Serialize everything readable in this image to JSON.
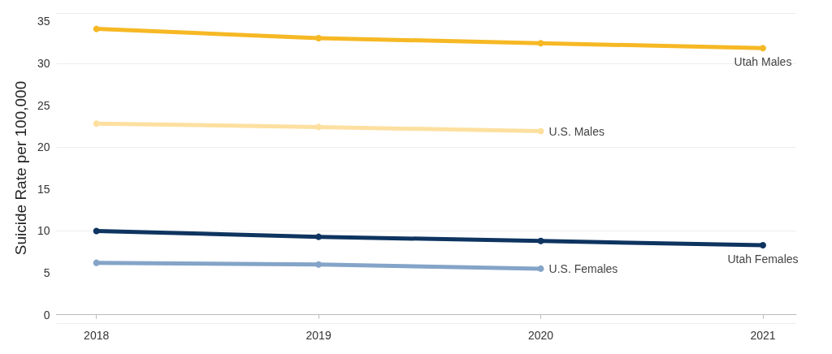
{
  "chart_data": {
    "type": "line",
    "ylabel": "Suicide Rate per 100,000",
    "x": [
      2018,
      2019,
      2020,
      2021
    ],
    "xlim": [
      2017.82,
      2021.15
    ],
    "xticks": [
      2018,
      2019,
      2020,
      2021
    ],
    "ylim": [
      -1,
      36
    ],
    "yticks": [
      0,
      5,
      10,
      15,
      20,
      25,
      30,
      35
    ],
    "grid": "y",
    "legend": false,
    "marker": "circle",
    "line_style": "solid",
    "series": [
      {
        "name": "Utah Males",
        "color": "#f6b824",
        "values": [
          34.1,
          33.0,
          32.4,
          31.8
        ]
      },
      {
        "name": "U.S. Males",
        "color": "#fde0a0",
        "values": [
          22.8,
          22.4,
          21.9,
          null
        ]
      },
      {
        "name": "Utah Females",
        "color": "#0e3460",
        "values": [
          10.0,
          9.3,
          8.8,
          8.3
        ]
      },
      {
        "name": "U.S. Females",
        "color": "#84a4c8",
        "values": [
          6.2,
          6.0,
          5.5,
          null
        ]
      }
    ]
  }
}
